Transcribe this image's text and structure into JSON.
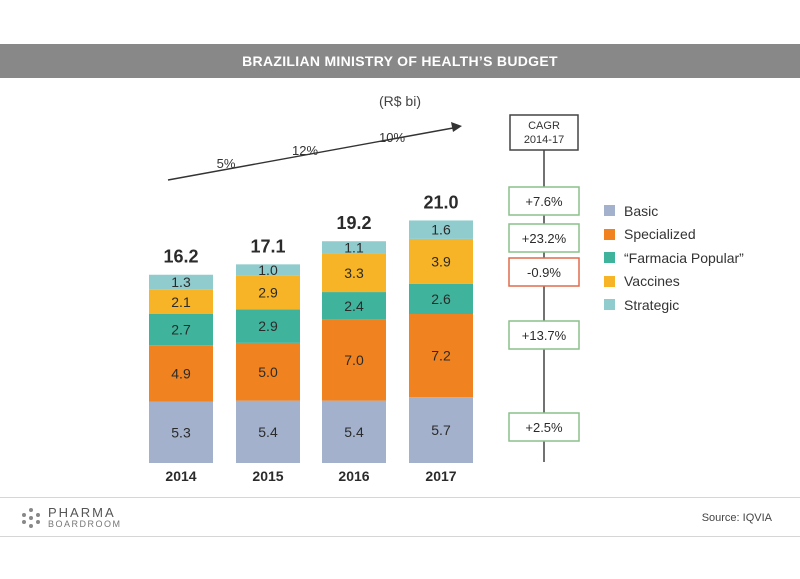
{
  "title": "BRAZILIAN MINISTRY OF HEALTH’S BUDGET",
  "unit": "(R$ bi)",
  "growth_labels": [
    "5%",
    "12%",
    "10%"
  ],
  "colors": {
    "Basic": "#a3b1cc",
    "Specialized": "#f0831f",
    "Farmacia Popular": "#3fb39b",
    "Vaccines": "#f7b426",
    "Strategic": "#90ccce",
    "cagr_positive_border": "#8cc08c",
    "cagr_negative_border": "#e16a4c"
  },
  "chart_data": {
    "type": "bar",
    "stacked": true,
    "categories": [
      "2014",
      "2015",
      "2016",
      "2017"
    ],
    "series": [
      {
        "name": "Basic",
        "values": [
          5.3,
          5.4,
          5.4,
          5.7
        ],
        "labels": [
          "5.3",
          "5.4",
          "5.4",
          "5.7"
        ]
      },
      {
        "name": "Specialized",
        "values": [
          4.9,
          5.0,
          7.0,
          7.2
        ],
        "labels": [
          "4.9",
          "5.0",
          "7.0",
          "7.2"
        ]
      },
      {
        "name": "“Farmacia Popular”",
        "values": [
          2.7,
          2.9,
          2.4,
          2.6
        ],
        "labels": [
          "2.7",
          "2.9",
          "2.4",
          "2.6"
        ]
      },
      {
        "name": "Vaccines",
        "values": [
          2.1,
          2.9,
          3.3,
          3.9
        ],
        "labels": [
          "2.1",
          "2.9",
          "3.3",
          "3.9"
        ]
      },
      {
        "name": "Strategic",
        "values": [
          1.3,
          1.0,
          1.1,
          1.6
        ],
        "labels": [
          "1.3",
          "1.0",
          "1.1",
          "1.6"
        ]
      }
    ],
    "totals": [
      "16.2",
      "17.1",
      "19.2",
      "21.0"
    ],
    "legend_position": "right",
    "grid": false
  },
  "cagr": {
    "header_line1": "CAGR",
    "header_line2": "2014-17",
    "items": [
      {
        "series": "Strategic",
        "value": "+7.6%"
      },
      {
        "series": "Vaccines",
        "value": "+23.2%"
      },
      {
        "series": "Farmacia Popular",
        "value": "-0.9%"
      },
      {
        "series": "Specialized",
        "value": "+13.7%"
      },
      {
        "series": "Basic",
        "value": "+2.5%"
      }
    ]
  },
  "legend": [
    {
      "label": "Basic",
      "color": "#a3b1cc"
    },
    {
      "label": "Specialized",
      "color": "#f0831f"
    },
    {
      "label": "“Farmacia Popular”",
      "color": "#3fb39b"
    },
    {
      "label": "Vaccines",
      "color": "#f7b426"
    },
    {
      "label": "Strategic",
      "color": "#90ccce"
    }
  ],
  "logo": {
    "line1": "PHARMA",
    "line2": "BOARDROOM"
  },
  "source": "Source: IQVIA"
}
